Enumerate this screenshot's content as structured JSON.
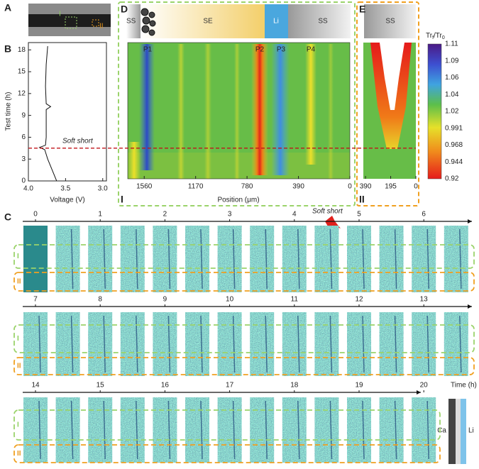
{
  "panels": {
    "a": "A",
    "b": "B",
    "c": "C",
    "d": "D",
    "e": "E"
  },
  "panel_a": {
    "labels": [
      "I",
      "II"
    ]
  },
  "panel_b": {
    "ylabel": "Test time (h)",
    "xlabel": "Voltage (V)",
    "xlim": [
      4.0,
      2.95
    ],
    "ylim": [
      0,
      19
    ],
    "xticks": [
      {
        "value": 4.0,
        "label": "4.0"
      },
      {
        "value": 3.5,
        "label": "3.5"
      },
      {
        "value": 3.0,
        "label": "3.0"
      }
    ],
    "yticks": [
      0,
      3,
      6,
      9,
      12,
      15,
      18
    ],
    "curve": {
      "x": [
        3.62,
        3.68,
        3.74,
        3.78,
        3.85,
        3.77,
        3.76,
        3.76,
        3.7,
        3.76,
        3.77,
        3.76,
        3.74
      ],
      "y": [
        0,
        1.5,
        3,
        4.3,
        4.6,
        4.9,
        6,
        9.8,
        10.2,
        10.6,
        13,
        16,
        18.5
      ]
    }
  },
  "soft_short": "Soft short",
  "soft_short_time": 4.5,
  "panel_d": {
    "segments": [
      "SS",
      "SE",
      "Li",
      "SS"
    ],
    "peaks": [
      "P1",
      "P2",
      "P3",
      "P4"
    ],
    "xlabel": "Position (μm)",
    "xlim": [
      1685,
      0
    ],
    "xticks": [
      1560,
      1170,
      780,
      390,
      0
    ],
    "region": "I"
  },
  "panel_e": {
    "segment": "SS",
    "xlim": [
      407,
      0
    ],
    "xticks": [
      390,
      195,
      0
    ],
    "region": "II"
  },
  "colorbar": {
    "title": [
      "Tr",
      "f",
      "/Tr",
      "0"
    ],
    "ticks": [
      1.11,
      1.09,
      1.06,
      1.04,
      1.02,
      0.991,
      0.968,
      0.944,
      0.92
    ]
  },
  "panel_c": {
    "rows": [
      [
        0,
        1,
        2,
        3,
        4,
        5,
        6
      ],
      [
        7,
        8,
        9,
        10,
        11,
        12,
        13
      ],
      [
        14,
        15,
        16,
        17,
        18,
        19,
        20
      ]
    ],
    "time_label": "Time (h)",
    "regions": [
      "I",
      "II"
    ],
    "legend": [
      "Ca",
      "Li"
    ]
  }
}
